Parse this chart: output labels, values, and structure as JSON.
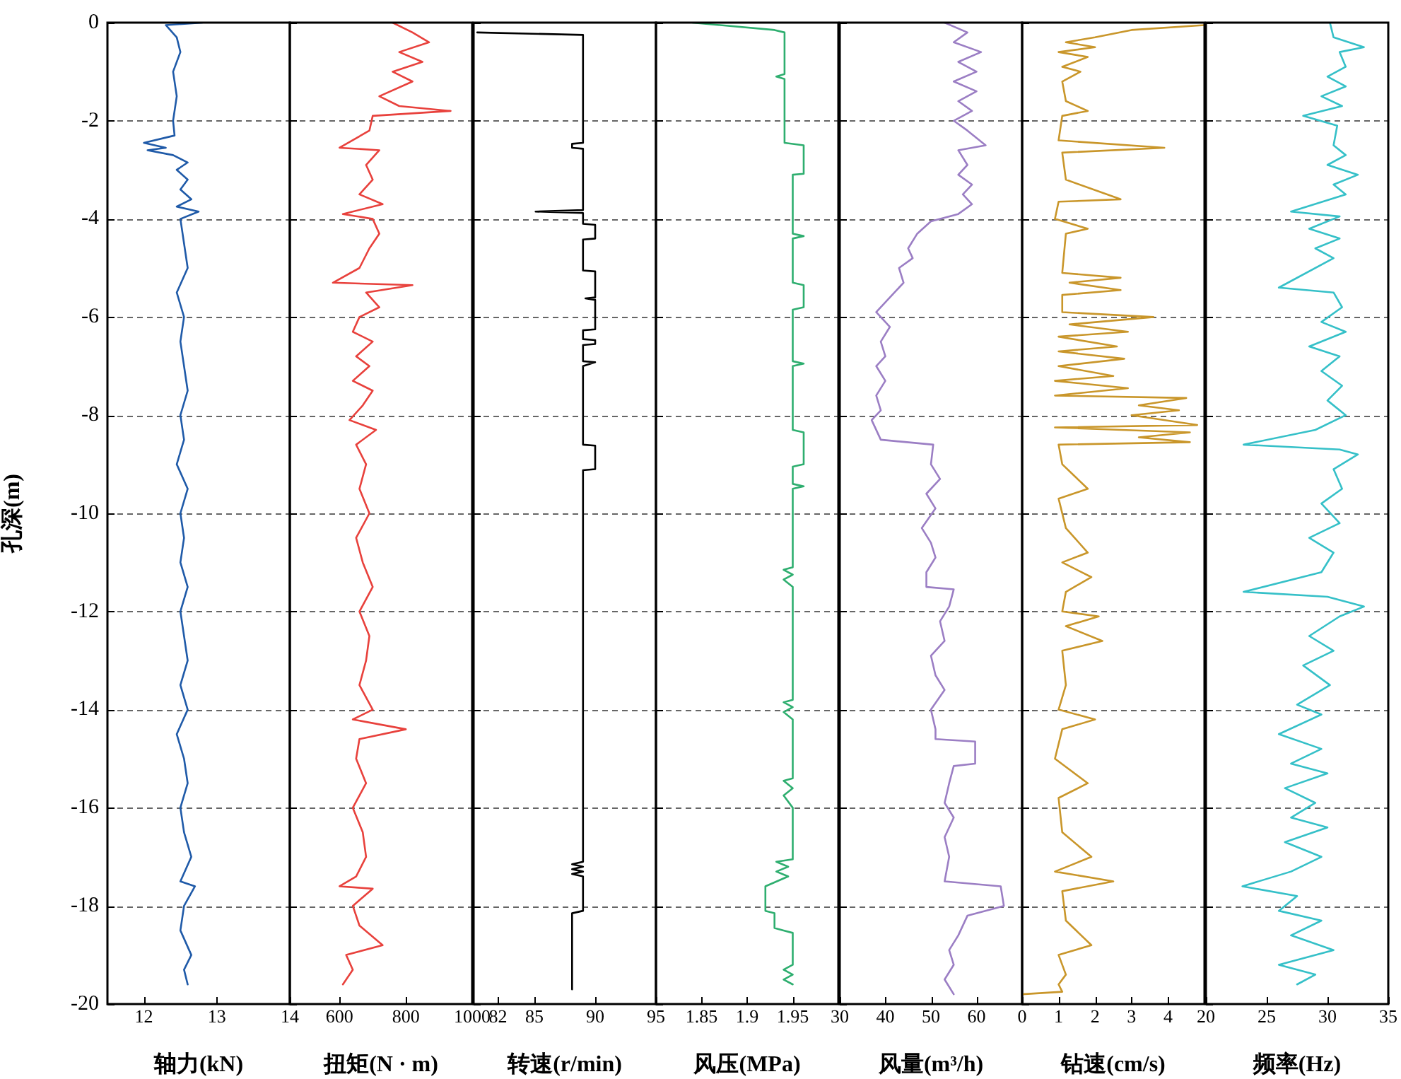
{
  "chart_data": [
    {
      "type": "line",
      "xlabel": "轴力(kN)",
      "ylabel": "孔深(m)",
      "xlim": [
        11.5,
        14
      ],
      "xticks": [
        12,
        13,
        14
      ],
      "ylim": [
        -20,
        0
      ],
      "yticks": [
        0,
        -2,
        -4,
        -6,
        -8,
        -10,
        -12,
        -14,
        -16,
        -18,
        -20
      ],
      "grid": "y",
      "series": [
        {
          "color": "#1f5aa8",
          "x": [
            12.8,
            12.3,
            12.45,
            12.5,
            12.4,
            12.45,
            12.4,
            12.42,
            12.0,
            12.3,
            12.05,
            12.4,
            12.6,
            12.45,
            12.6,
            12.5,
            12.65,
            12.45,
            12.75,
            12.5,
            12.55,
            12.6,
            12.45,
            12.55,
            12.5,
            12.55,
            12.6,
            12.5,
            12.55,
            12.45,
            12.6,
            12.5,
            12.55,
            12.5,
            12.6,
            12.5,
            12.55,
            12.6,
            12.5,
            12.6,
            12.45,
            12.55,
            12.6,
            12.5,
            12.55,
            12.65,
            12.5,
            12.7,
            12.55,
            12.5,
            12.65,
            12.55,
            12.6
          ],
          "values": [
            0,
            -0.05,
            -0.3,
            -0.6,
            -1.0,
            -1.5,
            -2.0,
            -2.3,
            -2.45,
            -2.55,
            -2.6,
            -2.7,
            -2.85,
            -3.0,
            -3.2,
            -3.4,
            -3.6,
            -3.75,
            -3.85,
            -4.0,
            -4.5,
            -5.0,
            -5.5,
            -6.0,
            -6.5,
            -7.0,
            -7.5,
            -8.0,
            -8.5,
            -9.0,
            -9.5,
            -10.0,
            -10.5,
            -11.0,
            -11.5,
            -12.0,
            -12.5,
            -13.0,
            -13.5,
            -14.0,
            -14.5,
            -15.0,
            -15.5,
            -16.0,
            -16.5,
            -17.0,
            -17.5,
            -17.6,
            -18.0,
            -18.5,
            -19.0,
            -19.3,
            -19.6
          ]
        }
      ]
    },
    {
      "type": "line",
      "xlabel": "扭矩(N · m)",
      "xlim": [
        450,
        1000
      ],
      "xticks": [
        600,
        800,
        1000
      ],
      "ylim": [
        -20,
        0
      ],
      "yticks": [
        0,
        -2,
        -4,
        -6,
        -8,
        -10,
        -12,
        -14,
        -16,
        -18,
        -20
      ],
      "grid": "y",
      "tick_labels": "x",
      "series": [
        {
          "color": "#e8413c",
          "x": [
            760,
            820,
            870,
            780,
            850,
            760,
            820,
            720,
            780,
            935,
            700,
            690,
            600,
            720,
            680,
            700,
            660,
            730,
            610,
            700,
            720,
            690,
            660,
            580,
            820,
            680,
            720,
            660,
            640,
            700,
            650,
            690,
            640,
            700,
            670,
            630,
            710,
            650,
            680,
            660,
            690,
            650,
            670,
            700,
            660,
            690,
            680,
            660,
            700,
            640,
            800,
            660,
            650,
            680,
            640,
            670,
            680,
            650,
            600,
            700,
            640,
            660,
            730,
            620,
            640,
            610
          ],
          "values": [
            0,
            -0.2,
            -0.4,
            -0.6,
            -0.8,
            -1.0,
            -1.2,
            -1.5,
            -1.7,
            -1.8,
            -1.9,
            -2.2,
            -2.55,
            -2.6,
            -2.9,
            -3.2,
            -3.5,
            -3.7,
            -3.9,
            -4.0,
            -4.3,
            -4.6,
            -5.0,
            -5.3,
            -5.35,
            -5.5,
            -5.8,
            -6.0,
            -6.3,
            -6.5,
            -6.8,
            -7.0,
            -7.3,
            -7.5,
            -7.8,
            -8.1,
            -8.3,
            -8.6,
            -9.0,
            -9.5,
            -10.0,
            -10.5,
            -11.0,
            -11.5,
            -12.0,
            -12.5,
            -13.0,
            -13.5,
            -14.0,
            -14.2,
            -14.4,
            -14.6,
            -15.0,
            -15.5,
            -16.0,
            -16.5,
            -17.0,
            -17.4,
            -17.6,
            -17.65,
            -18.0,
            -18.4,
            -18.8,
            -19.0,
            -19.3,
            -19.6
          ]
        }
      ]
    },
    {
      "type": "line",
      "xlabel": "转速(r/min)",
      "xlim": [
        80,
        95
      ],
      "xticks": [
        82,
        85,
        90,
        95
      ],
      "ylim": [
        -20,
        0
      ],
      "yticks": [
        0,
        -2,
        -4,
        -6,
        -8,
        -10,
        -12,
        -14,
        -16,
        -18,
        -20
      ],
      "grid": "y",
      "tick_labels": "x",
      "series": [
        {
          "color": "#000000",
          "x": [
            80.3,
            89,
            89,
            88.1,
            88.1,
            89,
            89,
            85.1,
            89,
            89,
            90,
            90,
            89,
            89,
            90,
            90,
            89.2,
            90,
            90,
            89,
            89,
            90,
            90,
            89,
            89,
            90,
            89,
            89,
            90,
            90,
            89,
            89,
            88.1,
            89,
            88.1,
            89,
            88.1,
            89,
            89,
            88.1,
            88.1
          ],
          "values": [
            -0.2,
            -0.25,
            -2.45,
            -2.47,
            -2.55,
            -2.57,
            -3.82,
            -3.85,
            -3.88,
            -4.1,
            -4.12,
            -4.4,
            -4.42,
            -5.05,
            -5.07,
            -5.6,
            -5.62,
            -5.65,
            -6.25,
            -6.27,
            -6.45,
            -6.47,
            -6.55,
            -6.57,
            -6.9,
            -6.92,
            -7.0,
            -8.6,
            -8.62,
            -9.1,
            -9.12,
            -17.1,
            -17.15,
            -17.2,
            -17.25,
            -17.3,
            -17.35,
            -17.4,
            -18.1,
            -18.15,
            -19.7
          ]
        }
      ]
    },
    {
      "type": "line",
      "xlabel": "风压(MPa)",
      "xlim": [
        1.8,
        2.0
      ],
      "xticks": [
        1.85,
        1.9,
        1.95
      ],
      "ylim": [
        -20,
        0
      ],
      "yticks": [
        0,
        -2,
        -4,
        -6,
        -8,
        -10,
        -12,
        -14,
        -16,
        -18,
        -20
      ],
      "grid": "y",
      "tick_labels": "x",
      "series": [
        {
          "color": "#2eae6f",
          "x": [
            1.84,
            1.93,
            1.941,
            1.941,
            1.932,
            1.941,
            1.941,
            1.962,
            1.962,
            1.95,
            1.95,
            1.962,
            1.95,
            1.95,
            1.962,
            1.962,
            1.95,
            1.95,
            1.962,
            1.95,
            1.95,
            1.962,
            1.962,
            1.95,
            1.95,
            1.962,
            1.95,
            1.95,
            1.94,
            1.95,
            1.94,
            1.95,
            1.95,
            1.94,
            1.95,
            1.94,
            1.95,
            1.95,
            1.94,
            1.95,
            1.94,
            1.95,
            1.95,
            1.932,
            1.945,
            1.932,
            1.945,
            1.92,
            1.92,
            1.93,
            1.93,
            1.94,
            1.95,
            1.95,
            1.94,
            1.95,
            1.94,
            1.95
          ],
          "values": [
            0,
            -0.15,
            -0.2,
            -1.05,
            -1.1,
            -1.15,
            -2.45,
            -2.5,
            -3.08,
            -3.1,
            -4.3,
            -4.35,
            -4.4,
            -5.3,
            -5.35,
            -5.8,
            -5.85,
            -6.9,
            -6.95,
            -7.0,
            -8.3,
            -8.35,
            -9.0,
            -9.05,
            -9.4,
            -9.45,
            -9.5,
            -11.1,
            -11.15,
            -11.25,
            -11.35,
            -11.5,
            -13.8,
            -13.85,
            -13.95,
            -14.05,
            -14.2,
            -15.4,
            -15.45,
            -15.6,
            -15.75,
            -16.0,
            -17.05,
            -17.1,
            -17.2,
            -17.3,
            -17.4,
            -17.6,
            -18.1,
            -18.15,
            -18.45,
            -18.5,
            -18.55,
            -19.2,
            -19.3,
            -19.4,
            -19.5,
            -19.6
          ]
        }
      ]
    },
    {
      "type": "line",
      "xlabel": "风量(m³/h)",
      "xlim": [
        30,
        70
      ],
      "xticks": [
        30,
        40,
        50,
        60
      ],
      "ylim": [
        -20,
        0
      ],
      "yticks": [
        0,
        -2,
        -4,
        -6,
        -8,
        -10,
        -12,
        -14,
        -16,
        -18,
        -20
      ],
      "grid": "y",
      "tick_labels": "x",
      "series": [
        {
          "color": "#9b7ec4",
          "x": [
            53,
            58,
            55,
            61,
            56,
            60,
            55,
            60,
            56,
            59,
            55,
            58,
            62,
            56,
            58,
            56,
            59,
            57,
            59,
            56,
            50,
            47,
            45,
            46,
            43,
            44,
            42,
            38,
            41,
            39,
            40,
            38,
            40,
            38,
            39,
            37,
            39,
            50.5,
            50,
            52,
            49,
            51,
            48,
            50,
            51,
            49,
            49,
            55,
            54,
            52,
            53,
            50,
            51,
            53,
            50,
            51,
            51,
            59.7,
            59.7,
            55,
            54,
            53,
            55,
            53,
            54,
            53,
            65.3,
            66,
            58,
            56,
            54,
            55,
            53,
            55
          ],
          "values": [
            0,
            -0.2,
            -0.4,
            -0.6,
            -0.8,
            -1.0,
            -1.2,
            -1.4,
            -1.6,
            -1.8,
            -2.0,
            -2.2,
            -2.5,
            -2.6,
            -2.9,
            -3.1,
            -3.3,
            -3.5,
            -3.7,
            -3.9,
            -4.05,
            -4.3,
            -4.6,
            -4.8,
            -5.0,
            -5.3,
            -5.5,
            -5.9,
            -6.2,
            -6.5,
            -6.8,
            -7.0,
            -7.3,
            -7.6,
            -7.9,
            -8.1,
            -8.5,
            -8.6,
            -9.0,
            -9.3,
            -9.6,
            -9.9,
            -10.3,
            -10.6,
            -10.9,
            -11.2,
            -11.5,
            -11.55,
            -11.9,
            -12.2,
            -12.6,
            -12.9,
            -13.3,
            -13.6,
            -14.0,
            -14.4,
            -14.6,
            -14.65,
            -15.1,
            -15.15,
            -15.5,
            -15.9,
            -16.2,
            -16.6,
            -17.0,
            -17.5,
            -17.6,
            -18.0,
            -18.2,
            -18.6,
            -18.9,
            -19.2,
            -19.5,
            -19.8
          ]
        }
      ]
    },
    {
      "type": "line",
      "xlabel": "钻速(cm/s)",
      "xlim": [
        0,
        5
      ],
      "xticks": [
        0,
        1,
        2,
        3,
        4
      ],
      "ylim": [
        -20,
        0
      ],
      "yticks": [
        0,
        -2,
        -4,
        -6,
        -8,
        -10,
        -12,
        -14,
        -16,
        -18,
        -20
      ],
      "grid": "y",
      "tick_labels": "x",
      "series": [
        {
          "color": "#c9962a",
          "x": [
            5,
            3,
            2,
            1.2,
            2,
            1,
            1.8,
            1.1,
            1.6,
            1.1,
            1.2,
            1.8,
            1.1,
            1.0,
            3.9,
            1.1,
            1.2,
            2.7,
            1.0,
            0.9,
            1.8,
            1.2,
            1.1,
            2.7,
            1.3,
            2.7,
            1.1,
            1.1,
            3.6,
            1.3,
            2.9,
            1.0,
            2.6,
            1.0,
            2.8,
            1.0,
            2.5,
            0.9,
            2.9,
            0.9,
            4.5,
            3.2,
            4.3,
            3.0,
            4.8,
            0.9,
            4.6,
            3.2,
            4.6,
            1.0,
            1.1,
            1.8,
            1.0,
            1.2,
            1.8,
            1.1,
            1.9,
            1.2,
            1.1,
            2.1,
            1.2,
            2.2,
            1.1,
            1.2,
            1.0,
            2.0,
            1.1,
            0.9,
            1.8,
            1.0,
            1.1,
            1.9,
            0.9,
            2.5,
            1.1,
            1.2,
            1.9,
            1.0,
            1.2,
            1.0,
            1.1,
            0
          ],
          "values": [
            -0.05,
            -0.15,
            -0.3,
            -0.4,
            -0.5,
            -0.6,
            -0.7,
            -0.9,
            -1.0,
            -1.2,
            -1.6,
            -1.8,
            -1.9,
            -2.4,
            -2.55,
            -2.65,
            -3.2,
            -3.6,
            -3.65,
            -4.0,
            -4.2,
            -4.3,
            -5.1,
            -5.2,
            -5.3,
            -5.45,
            -5.55,
            -5.9,
            -6.0,
            -6.15,
            -6.3,
            -6.4,
            -6.6,
            -6.7,
            -6.85,
            -7.0,
            -7.2,
            -7.3,
            -7.45,
            -7.6,
            -7.65,
            -7.8,
            -7.9,
            -8.0,
            -8.2,
            -8.25,
            -8.35,
            -8.45,
            -8.55,
            -8.6,
            -9.0,
            -9.5,
            -9.7,
            -10.3,
            -10.8,
            -11.0,
            -11.3,
            -11.6,
            -12.0,
            -12.1,
            -12.3,
            -12.6,
            -12.8,
            -13.5,
            -14.0,
            -14.2,
            -14.4,
            -15.0,
            -15.5,
            -15.8,
            -16.5,
            -17.0,
            -17.3,
            -17.5,
            -17.7,
            -18.3,
            -18.8,
            -19.0,
            -19.4,
            -19.6,
            -19.75,
            -19.8
          ]
        }
      ]
    },
    {
      "type": "line",
      "xlabel": "频率(Hz)",
      "xlim": [
        20,
        35
      ],
      "xticks": [
        20,
        25,
        30,
        35
      ],
      "ylim": [
        -20,
        0
      ],
      "yticks": [
        0,
        -2,
        -4,
        -6,
        -8,
        -10,
        -12,
        -14,
        -16,
        -18,
        -20
      ],
      "grid": "y",
      "tick_labels": "x",
      "series": [
        {
          "color": "#35c0c8",
          "x": [
            30.2,
            30.5,
            33,
            31,
            31.5,
            30,
            31.5,
            29.5,
            31.2,
            28,
            30.8,
            30.5,
            31.5,
            30,
            32.5,
            30.5,
            31.5,
            27,
            31,
            28.5,
            31,
            29,
            30.5,
            26,
            30.5,
            31.2,
            29.5,
            31.5,
            28.5,
            31,
            29.5,
            31.2,
            30,
            31.5,
            29,
            23.1,
            31,
            32.5,
            30.5,
            31.2,
            29.5,
            31,
            28.5,
            30.5,
            29.5,
            23.1,
            30,
            33,
            31,
            28.5,
            30.5,
            28,
            30.2,
            27.5,
            29.5,
            26,
            29.5,
            27,
            30,
            26.5,
            29,
            27,
            30,
            26.5,
            29.5,
            27,
            23,
            27.5,
            26,
            29.5,
            27,
            30.5,
            26,
            29,
            27.5
          ],
          "values": [
            0,
            -0.3,
            -0.5,
            -0.6,
            -0.9,
            -1.1,
            -1.3,
            -1.5,
            -1.7,
            -1.9,
            -2.1,
            -2.5,
            -2.7,
            -2.9,
            -3.1,
            -3.3,
            -3.5,
            -3.85,
            -3.95,
            -4.2,
            -4.4,
            -4.6,
            -4.8,
            -5.4,
            -5.5,
            -5.8,
            -6.1,
            -6.3,
            -6.6,
            -6.8,
            -7.1,
            -7.4,
            -7.7,
            -8.0,
            -8.3,
            -8.6,
            -8.7,
            -8.8,
            -9.1,
            -9.5,
            -9.8,
            -10.2,
            -10.5,
            -10.8,
            -11.2,
            -11.6,
            -11.7,
            -11.9,
            -12.1,
            -12.5,
            -12.8,
            -13.1,
            -13.5,
            -13.9,
            -14.1,
            -14.5,
            -14.8,
            -15.1,
            -15.3,
            -15.6,
            -15.9,
            -16.2,
            -16.4,
            -16.7,
            -17.0,
            -17.3,
            -17.6,
            -17.8,
            -18.1,
            -18.3,
            -18.6,
            -18.9,
            -19.2,
            -19.4,
            -19.6
          ]
        }
      ]
    }
  ]
}
